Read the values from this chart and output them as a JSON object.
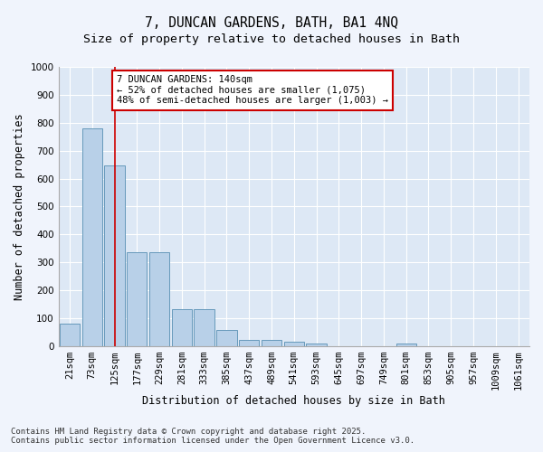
{
  "title_line1": "7, DUNCAN GARDENS, BATH, BA1 4NQ",
  "title_line2": "Size of property relative to detached houses in Bath",
  "xlabel": "Distribution of detached houses by size in Bath",
  "ylabel": "Number of detached properties",
  "categories": [
    "21sqm",
    "73sqm",
    "125sqm",
    "177sqm",
    "229sqm",
    "281sqm",
    "333sqm",
    "385sqm",
    "437sqm",
    "489sqm",
    "541sqm",
    "593sqm",
    "645sqm",
    "697sqm",
    "749sqm",
    "801sqm",
    "853sqm",
    "905sqm",
    "957sqm",
    "1009sqm",
    "1061sqm"
  ],
  "values": [
    82,
    780,
    648,
    335,
    335,
    133,
    133,
    58,
    22,
    22,
    15,
    8,
    0,
    0,
    0,
    8,
    0,
    0,
    0,
    0,
    0
  ],
  "bar_color": "#b8d0e8",
  "bar_edge_color": "#6699bb",
  "background_color": "#dde8f5",
  "grid_color": "#ffffff",
  "red_line_x": 2,
  "annotation_text": "7 DUNCAN GARDENS: 140sqm\n← 52% of detached houses are smaller (1,075)\n48% of semi-detached houses are larger (1,003) →",
  "annotation_box_color": "#ffffff",
  "annotation_box_edge": "#cc0000",
  "red_line_color": "#cc0000",
  "ylim": [
    0,
    1000
  ],
  "yticks": [
    0,
    100,
    200,
    300,
    400,
    500,
    600,
    700,
    800,
    900,
    1000
  ],
  "footnote1": "Contains HM Land Registry data © Crown copyright and database right 2025.",
  "footnote2": "Contains public sector information licensed under the Open Government Licence v3.0.",
  "title_fontsize": 10.5,
  "subtitle_fontsize": 9.5,
  "axis_label_fontsize": 8.5,
  "tick_fontsize": 7.5,
  "annotation_fontsize": 7.5,
  "footnote_fontsize": 6.5,
  "fig_bg": "#f0f4fc"
}
